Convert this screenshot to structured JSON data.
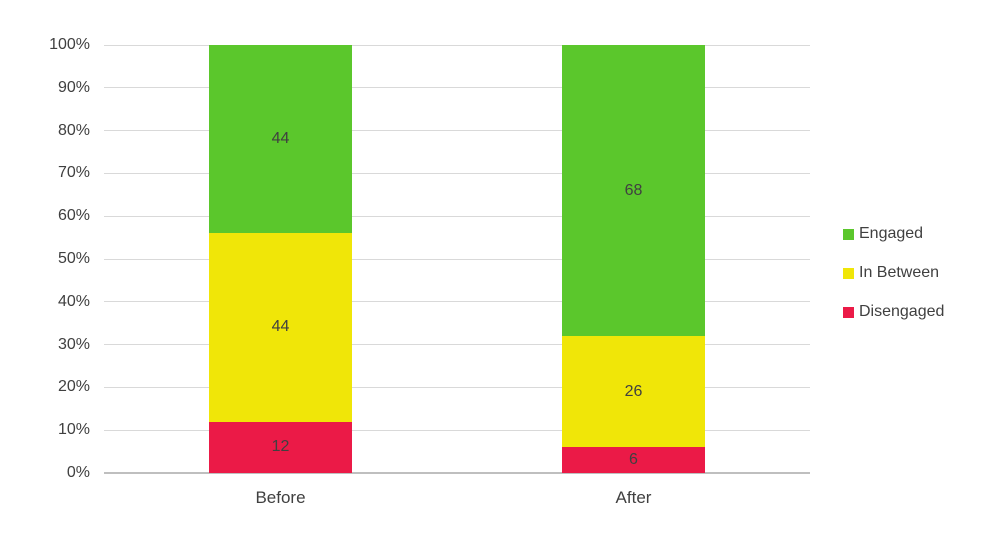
{
  "chart_data": {
    "type": "bar",
    "variant": "stacked-100-percent-column",
    "title": "",
    "categories": [
      "Before",
      "After"
    ],
    "series": [
      {
        "name": "Disengaged",
        "color": "#EB1A47",
        "values": [
          12,
          6
        ]
      },
      {
        "name": "In Between",
        "color": "#F0E608",
        "values": [
          44,
          26
        ]
      },
      {
        "name": "Engaged",
        "color": "#5BC72C",
        "values": [
          44,
          68
        ]
      }
    ],
    "y_axis": {
      "min": 0,
      "max": 100,
      "step": 10,
      "tick_labels": [
        "0%",
        "10%",
        "20%",
        "30%",
        "40%",
        "50%",
        "60%",
        "70%",
        "80%",
        "90%",
        "100%"
      ]
    },
    "legend": {
      "position": "right",
      "entries": [
        "Engaged",
        "In Between",
        "Disengaged"
      ]
    },
    "grid": true,
    "colors": {
      "data_label": "#404040",
      "tick_label": "#404040",
      "gridline": "#D9D9D9",
      "axis_line": "#BFBFBF",
      "background": "#FFFFFF"
    }
  }
}
